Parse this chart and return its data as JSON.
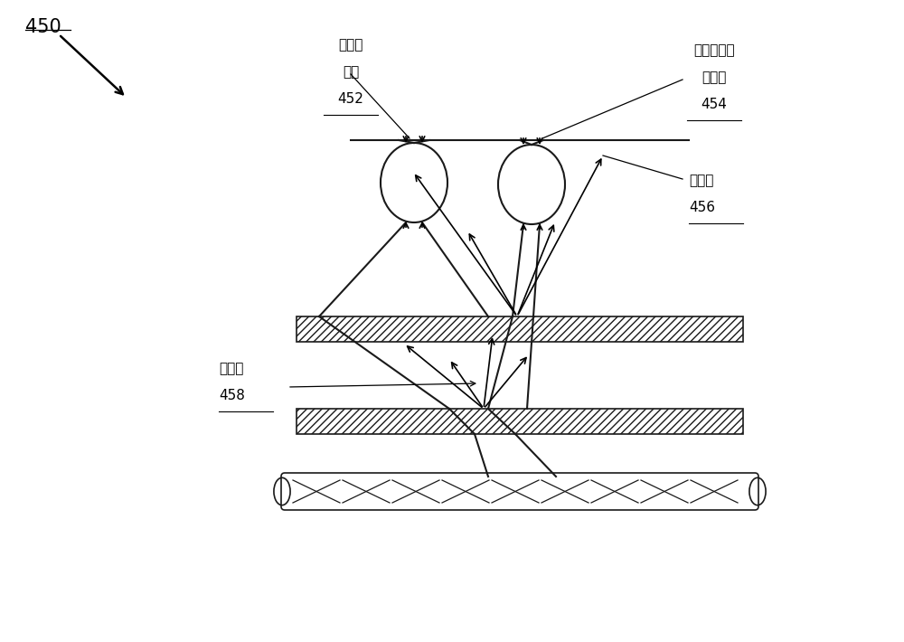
{
  "bg_color": "#ffffff",
  "lc": "#1a1a1a",
  "lw": 1.5,
  "label_450": "450",
  "label_452": "452",
  "label_454": "454",
  "label_456": "456",
  "label_458": "458",
  "t452_lines": [
    "视网膜",
    "图像"
  ],
  "t454_lines": [
    "视网膜上的",
    "杂散光"
  ],
  "t456_lines": [
    "光散射"
  ],
  "t458_lines": [
    "光散射"
  ],
  "figsize": [
    10.0,
    7.1
  ],
  "dpi": 100,
  "xlim": [
    0,
    10
  ],
  "ylim": [
    0,
    7.1
  ]
}
